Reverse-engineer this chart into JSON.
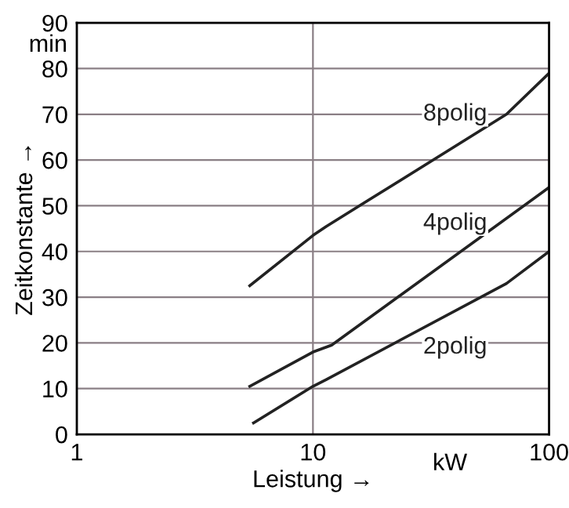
{
  "chart_data": {
    "type": "line",
    "xlabel": "Leistung →",
    "ylabel": "Zeitkonstante →",
    "annotations": [
      "min",
      "kW"
    ],
    "log": "x",
    "xlim": [
      1,
      100
    ],
    "xticks": [
      1,
      10,
      100
    ],
    "ylim": [
      0,
      90
    ],
    "yticks": [
      0,
      10,
      20,
      30,
      40,
      50,
      60,
      70,
      80,
      90
    ],
    "grid": true,
    "legend": false,
    "marker": "none",
    "line_style": "solid",
    "series": [
      {
        "name": "8polig",
        "color": "#222222",
        "x": [
          5.4,
          10,
          11.4,
          66,
          100
        ],
        "values": [
          32.5,
          43.5,
          45.5,
          70,
          79
        ]
      },
      {
        "name": "4polig",
        "color": "#222222",
        "x": [
          5.4,
          10,
          12,
          100
        ],
        "values": [
          10.5,
          18,
          19.5,
          54
        ]
      },
      {
        "name": "2polig",
        "color": "#222222",
        "x": [
          5.6,
          10,
          11.4,
          66,
          100
        ],
        "values": [
          2.5,
          10.5,
          12,
          33,
          40
        ]
      }
    ]
  }
}
